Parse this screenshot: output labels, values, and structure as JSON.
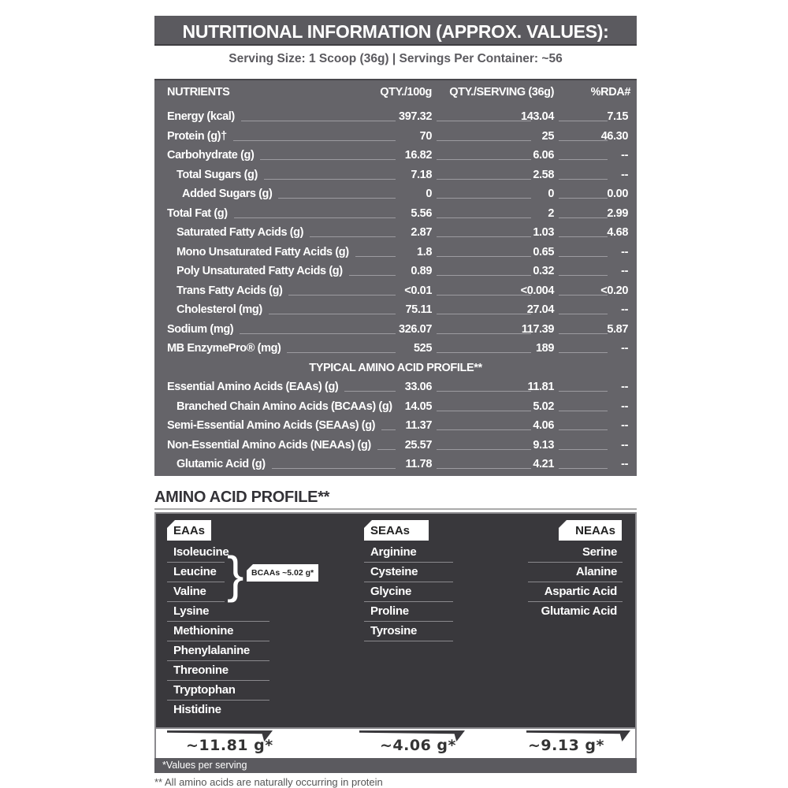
{
  "title": "NUTRITIONAL INFORMATION (APPROX. VALUES):",
  "serving": "Serving Size: 1 Scoop (36g)  |  Servings Per Container: ~56",
  "table": {
    "headers": {
      "nutrient": "NUTRIENTS",
      "per100": "QTY./100g",
      "perServing": "QTY./SERVING (36g)",
      "rda": "%RDA#"
    },
    "rows": [
      {
        "label": "Energy (kcal)",
        "level": 0,
        "per100": "397.32",
        "perServing": "143.04",
        "rda": "7.15"
      },
      {
        "label": "Protein (g)†",
        "level": 0,
        "per100": "70",
        "perServing": "25",
        "rda": "46.30"
      },
      {
        "label": "Carbohydrate (g)",
        "level": 0,
        "per100": "16.82",
        "perServing": "6.06",
        "rda": "--"
      },
      {
        "label": "Total Sugars (g)",
        "level": 1,
        "per100": "7.18",
        "perServing": "2.58",
        "rda": "--"
      },
      {
        "label": "Added Sugars (g)",
        "level": 2,
        "per100": "0",
        "perServing": "0",
        "rda": "0.00"
      },
      {
        "label": "Total Fat (g)",
        "level": 0,
        "per100": "5.56",
        "perServing": "2",
        "rda": "2.99"
      },
      {
        "label": "Saturated Fatty Acids (g)",
        "level": 1,
        "per100": "2.87",
        "perServing": "1.03",
        "rda": "4.68"
      },
      {
        "label": "Mono Unsaturated Fatty Acids (g)",
        "level": 1,
        "per100": "1.8",
        "perServing": "0.65",
        "rda": "--"
      },
      {
        "label": "Poly Unsaturated Fatty Acids (g)",
        "level": 1,
        "per100": "0.89",
        "perServing": "0.32",
        "rda": "--"
      },
      {
        "label": "Trans Fatty Acids (g)",
        "level": 1,
        "per100": "<0.01",
        "perServing": "<0.004",
        "rda": "<0.20"
      },
      {
        "label": "Cholesterol (mg)",
        "level": 1,
        "per100": "75.11",
        "perServing": "27.04",
        "rda": "--"
      },
      {
        "label": "Sodium (mg)",
        "level": 0,
        "per100": "326.07",
        "perServing": "117.39",
        "rda": "5.87"
      },
      {
        "label": "MB EnzymePro® (mg)",
        "level": 0,
        "per100": "525",
        "perServing": "189",
        "rda": "--"
      },
      {
        "section": "TYPICAL AMINO ACID PROFILE**"
      },
      {
        "label": "Essential Amino Acids (EAAs) (g)",
        "level": 0,
        "per100": "33.06",
        "perServing": "11.81",
        "rda": "--"
      },
      {
        "label": "Branched Chain Amino Acids (BCAAs) (g)",
        "level": 1,
        "per100": "14.05",
        "perServing": "5.02",
        "rda": "--"
      },
      {
        "label": "Semi-Essential Amino Acids (SEAAs) (g)",
        "level": 0,
        "per100": "11.37",
        "perServing": "4.06",
        "rda": "--"
      },
      {
        "label": "Non-Essential Amino Acids (NEAAs) (g)",
        "level": 0,
        "per100": "25.57",
        "perServing": "9.13",
        "rda": "--"
      },
      {
        "label": "Glutamic Acid (g)",
        "level": 1,
        "per100": "11.78",
        "perServing": "4.21",
        "rda": "--"
      }
    ]
  },
  "amino": {
    "heading": "AMINO ACID PROFILE**",
    "eaas": {
      "label": "EAAs",
      "items": [
        "Isoleucine",
        "Leucine",
        "Valine",
        "Lysine",
        "Methionine",
        "Phenylalanine",
        "Threonine",
        "Tryptophan",
        "Histidine"
      ],
      "total": "~11.81 g*"
    },
    "bcaa": "BCAAs ~5.02 g*",
    "seaas": {
      "label": "SEAAs",
      "items": [
        "Arginine",
        "Cysteine",
        "Glycine",
        "Proline",
        "Tyrosine"
      ],
      "total": "~4.06 g*"
    },
    "neaas": {
      "label": "NEAAs",
      "items": [
        "Serine",
        "Alanine",
        "Aspartic Acid",
        "Glutamic Acid"
      ],
      "total": "~9.13 g*"
    },
    "values_note": "*Values per serving",
    "footnote": "** All amino acids are naturally occurring in protein"
  }
}
